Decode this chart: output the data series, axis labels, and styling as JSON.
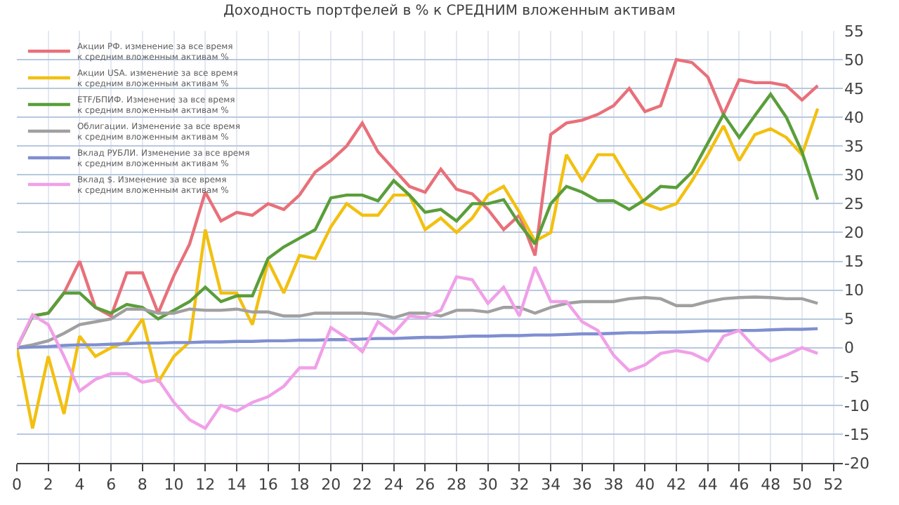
{
  "chart_data": {
    "type": "line",
    "title": "Доходность портфелей в % к СРЕДНИМ вложенным активам",
    "x": [
      0,
      1,
      2,
      3,
      4,
      5,
      6,
      7,
      8,
      9,
      10,
      11,
      12,
      13,
      14,
      15,
      16,
      17,
      18,
      19,
      20,
      21,
      22,
      23,
      24,
      25,
      26,
      27,
      28,
      29,
      30,
      31,
      32,
      33,
      34,
      35,
      36,
      37,
      38,
      39,
      40,
      41,
      42,
      43,
      44,
      45,
      46,
      47,
      48,
      49,
      50,
      51
    ],
    "series": [
      {
        "name": "Акции РФ. изменение за все время\nк средним вложенным активам %",
        "color": "#e8707a",
        "values": [
          0,
          5.5,
          6,
          9.5,
          15,
          7,
          5.5,
          13,
          13,
          6,
          12.5,
          18,
          27,
          22,
          23.5,
          23,
          25,
          24,
          26.5,
          30.5,
          32.5,
          35,
          39,
          34,
          31,
          28,
          27,
          31,
          27.5,
          26.7,
          24,
          20.5,
          23,
          16,
          37,
          39,
          39.5,
          40.5,
          42,
          45,
          41,
          42,
          50,
          49.5,
          47,
          40.5,
          46.5,
          46,
          46,
          45.5,
          43,
          45.5
        ]
      },
      {
        "name": "Акции USA. изменение за все время\nк средним вложенным активам %",
        "color": "#f2c010",
        "values": [
          0,
          -14,
          -1.5,
          -11.5,
          2,
          -1.5,
          0,
          1,
          5,
          -6,
          -1.5,
          1,
          20.5,
          9.5,
          9.5,
          4,
          15,
          9.5,
          16,
          15.5,
          21,
          25,
          23,
          23,
          26.5,
          26.5,
          20.5,
          22.5,
          20,
          22.5,
          26.5,
          28,
          23.5,
          18.5,
          20,
          33.5,
          29,
          33.5,
          33.5,
          29,
          25,
          24,
          25,
          29,
          33.5,
          38.5,
          32.5,
          37,
          38,
          36.5,
          33.5,
          41.5
        ]
      },
      {
        "name": "ETF/БПИФ. Изменение за все время\nк средним вложенным активам %",
        "color": "#5a9e3a",
        "values": [
          0,
          5.5,
          6,
          9.5,
          9.5,
          7,
          6,
          7.5,
          7,
          5,
          6.5,
          8,
          10.5,
          8,
          9,
          9,
          15.5,
          17.5,
          19,
          20.5,
          26,
          26.5,
          26.5,
          25.5,
          29,
          26.5,
          23.5,
          24,
          22,
          25,
          25,
          25.7,
          21.5,
          18,
          25,
          28,
          27,
          25.5,
          25.5,
          24,
          25.7,
          28,
          27.8,
          30.5,
          35.5,
          40.5,
          36.5,
          40.3,
          44,
          40,
          34,
          25.7
        ]
      },
      {
        "name": "Облигации. Изменение за все время\nк средним вложенным активам %",
        "color": "#a0a0a0",
        "values": [
          0,
          0.5,
          1.2,
          2.5,
          4,
          4.5,
          5,
          6.7,
          6.7,
          6,
          6,
          6.7,
          6.5,
          6.5,
          6.7,
          6.2,
          6.2,
          5.5,
          5.5,
          6,
          6,
          6,
          6,
          5.8,
          5.2,
          6,
          6,
          5.5,
          6.5,
          6.5,
          6.2,
          7,
          7,
          6,
          7,
          7.7,
          8,
          8,
          8,
          8.5,
          8.7,
          8.5,
          7.3,
          7.3,
          8,
          8.5,
          8.7,
          8.8,
          8.7,
          8.5,
          8.5,
          7.7
        ]
      },
      {
        "name": "Вклад РУБЛИ. Изменение за все время\nк средним вложенным активам %",
        "color": "#7f8fd0",
        "values": [
          0,
          0.1,
          0.2,
          0.4,
          0.5,
          0.5,
          0.6,
          0.7,
          0.8,
          0.8,
          0.9,
          0.9,
          1,
          1,
          1.1,
          1.1,
          1.2,
          1.2,
          1.3,
          1.3,
          1.4,
          1.4,
          1.5,
          1.6,
          1.6,
          1.7,
          1.8,
          1.8,
          1.9,
          2,
          2,
          2.1,
          2.1,
          2.2,
          2.2,
          2.3,
          2.4,
          2.4,
          2.5,
          2.6,
          2.6,
          2.7,
          2.7,
          2.8,
          2.9,
          2.9,
          3,
          3,
          3.1,
          3.2,
          3.2,
          3.3
        ]
      },
      {
        "name": "Вклад $. Изменение за все время\nк средним вложенным активам %",
        "color": "#f0a0e8",
        "values": [
          0,
          5.7,
          4,
          -1.5,
          -7.5,
          -5.5,
          -4.5,
          -4.5,
          -6,
          -5.5,
          -9.5,
          -12.5,
          -14,
          -10,
          -11,
          -9.5,
          -8.5,
          -6.7,
          -3.5,
          -3.5,
          3.5,
          1.7,
          -0.7,
          4.5,
          2.5,
          5.5,
          5.2,
          6.5,
          12.3,
          11.8,
          7.7,
          10.5,
          5.5,
          14,
          8,
          8,
          4.5,
          3,
          -1.3,
          -4,
          -3,
          -1,
          -0.5,
          -1,
          -2.3,
          2,
          3,
          0,
          -2.3,
          -1.3,
          0,
          -1
        ]
      }
    ],
    "xlim": [
      0,
      52.6
    ],
    "xticks": [
      0,
      2,
      4,
      6,
      8,
      10,
      12,
      14,
      16,
      18,
      20,
      22,
      24,
      26,
      28,
      30,
      32,
      34,
      36,
      38,
      40,
      42,
      44,
      46,
      48,
      50,
      52
    ],
    "ylim": [
      -20,
      55
    ],
    "yticks": [
      -20,
      -15,
      -10,
      -5,
      0,
      5,
      10,
      15,
      20,
      25,
      30,
      35,
      40,
      45,
      50,
      55
    ],
    "grid": true,
    "legend": "top left",
    "marker": "none",
    "line_style": "solid"
  }
}
